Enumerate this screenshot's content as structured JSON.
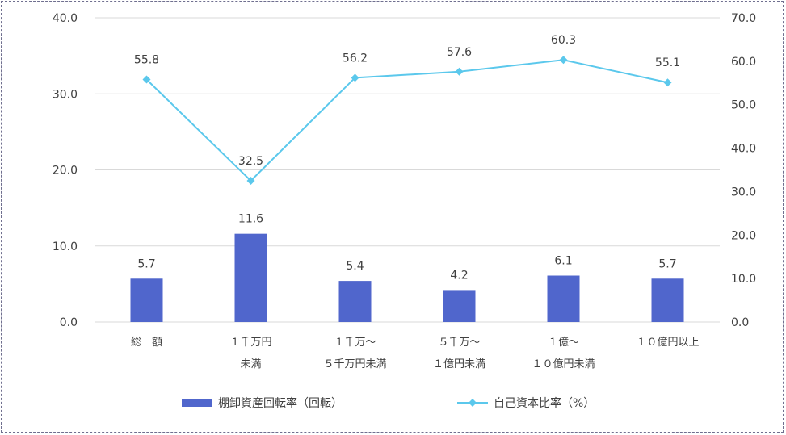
{
  "chart_data": {
    "type": "bar",
    "categories": [
      [
        "総　額",
        ""
      ],
      [
        "１千万円",
        "未満"
      ],
      [
        "１千万～",
        "５千万円未満"
      ],
      [
        "５千万～",
        "１億円未満"
      ],
      [
        "１億～",
        "１０億円未満"
      ],
      [
        "１０億円以上",
        ""
      ]
    ],
    "series": [
      {
        "name": "棚卸資産回転率（回転）",
        "kind": "bar",
        "axis": "left",
        "color": "#5066CC",
        "values": [
          5.7,
          11.6,
          5.4,
          4.2,
          6.1,
          5.7
        ],
        "labels": [
          "5.7",
          "11.6",
          "5.4",
          "4.2",
          "6.1",
          "5.7"
        ]
      },
      {
        "name": "自己資本比率（%）",
        "kind": "line",
        "axis": "right",
        "color": "#5BC8EC",
        "values": [
          55.8,
          32.5,
          56.2,
          57.6,
          60.3,
          55.1
        ],
        "labels": [
          "55.8",
          "32.5",
          "56.2",
          "57.6",
          "60.3",
          "55.1"
        ]
      }
    ],
    "y_left": {
      "min": 0,
      "max": 40,
      "step": 10,
      "ticks": [
        "0.0",
        "10.0",
        "20.0",
        "30.0",
        "40.0"
      ]
    },
    "y_right": {
      "min": 0,
      "max": 70,
      "step": 10,
      "ticks": [
        "0.0",
        "10.0",
        "20.0",
        "30.0",
        "40.0",
        "50.0",
        "60.0",
        "70.0"
      ]
    },
    "grid": true,
    "legend_position": "bottom"
  }
}
